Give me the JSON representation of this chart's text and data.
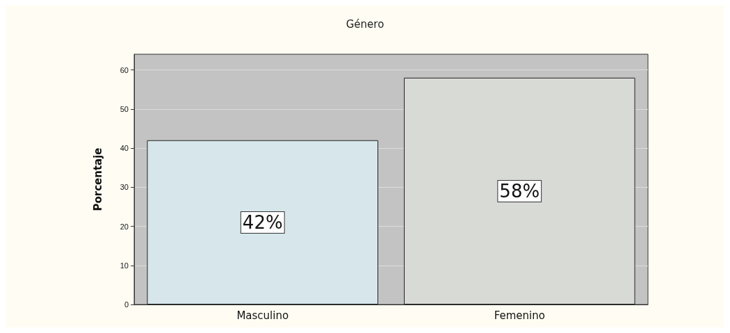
{
  "chart_data": {
    "type": "bar",
    "title": "Género",
    "ylabel": "Porcentaje",
    "categories": [
      "Masculino",
      "Femenino"
    ],
    "values": [
      42,
      58
    ],
    "colors": [
      "#d6e6ea",
      "#d8dad6"
    ],
    "value_labels": [
      "42%",
      "58%"
    ],
    "ylim": [
      0,
      64
    ],
    "yticks": [
      0,
      10,
      20,
      30,
      40,
      50,
      60
    ],
    "grid": "y"
  }
}
